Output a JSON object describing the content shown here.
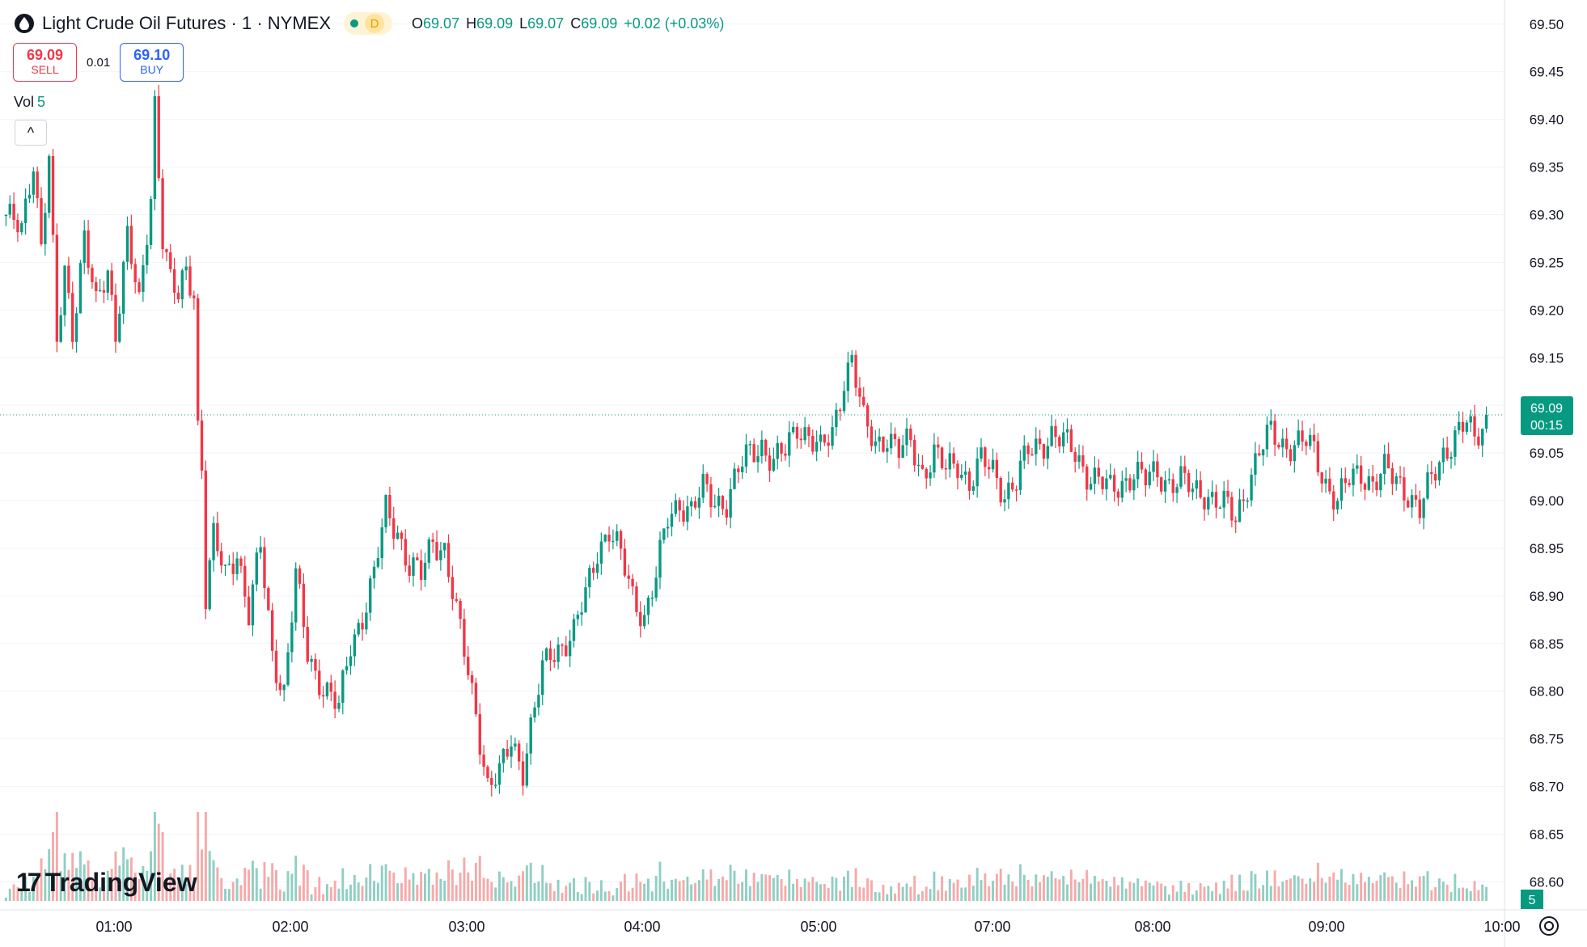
{
  "header": {
    "symbol_title": "Light Crude Oil Futures · 1 · NYMEX",
    "badge": "D",
    "ohlc": {
      "o_label": "O",
      "o": "69.07",
      "h_label": "H",
      "h": "69.09",
      "l_label": "L",
      "l": "69.07",
      "c_label": "C",
      "c": "69.09",
      "change": "+0.02 (+0.03%)"
    }
  },
  "trade": {
    "sell_price": "69.09",
    "sell_label": "SELL",
    "spread": "0.01",
    "buy_price": "69.10",
    "buy_label": "BUY"
  },
  "volume_label": {
    "name": "Vol",
    "value": "5"
  },
  "collapse_icon": "^",
  "logo": {
    "mark": "17",
    "text": "TradingView"
  },
  "price_scale": {
    "ticks": [
      "69.50",
      "69.45",
      "69.40",
      "69.35",
      "69.30",
      "69.25",
      "69.20",
      "69.15",
      "69.10",
      "69.05",
      "69.00",
      "68.95",
      "68.90",
      "68.85",
      "68.80",
      "68.75",
      "68.70",
      "68.65",
      "68.60"
    ],
    "last_price": "69.09",
    "countdown": "00:15",
    "volume_badge": "5"
  },
  "time_scale": {
    "ticks": [
      "01:00",
      "02:00",
      "03:00",
      "04:00",
      "05:00",
      "07:00",
      "08:00",
      "09:00",
      "10:00"
    ]
  },
  "colors": {
    "up": "#089981",
    "down": "#f23645",
    "vol_up": "#8fcfc3",
    "vol_down": "#f7a9a9",
    "grid": "#f0f3fa"
  },
  "chart_data": {
    "type": "candlestick",
    "interval": "1 minute",
    "ylim": [
      68.58,
      69.51
    ],
    "path": [
      [
        0,
        69.3
      ],
      [
        4,
        69.28
      ],
      [
        7,
        69.36
      ],
      [
        9,
        69.27
      ],
      [
        11,
        69.36
      ],
      [
        13,
        69.16
      ],
      [
        15,
        69.24
      ],
      [
        17,
        69.18
      ],
      [
        20,
        69.28
      ],
      [
        23,
        69.2
      ],
      [
        26,
        69.24
      ],
      [
        28,
        69.18
      ],
      [
        31,
        69.28
      ],
      [
        34,
        69.2
      ],
      [
        37,
        69.32
      ],
      [
        38,
        69.42
      ],
      [
        40,
        69.28
      ],
      [
        42,
        69.23
      ],
      [
        44,
        69.21
      ],
      [
        46,
        69.24
      ],
      [
        48,
        69.22
      ],
      [
        49,
        69.08
      ],
      [
        50,
        69.04
      ],
      [
        51,
        68.9
      ],
      [
        53,
        68.96
      ],
      [
        56,
        68.92
      ],
      [
        59,
        68.95
      ],
      [
        62,
        68.88
      ],
      [
        65,
        68.95
      ],
      [
        68,
        68.84
      ],
      [
        71,
        68.8
      ],
      [
        74,
        68.92
      ],
      [
        77,
        68.84
      ],
      [
        79,
        68.82
      ],
      [
        82,
        68.8
      ],
      [
        85,
        68.78
      ],
      [
        88,
        68.85
      ],
      [
        91,
        68.88
      ],
      [
        94,
        68.92
      ],
      [
        97,
        68.99
      ],
      [
        100,
        68.97
      ],
      [
        103,
        68.93
      ],
      [
        106,
        68.92
      ],
      [
        109,
        68.96
      ],
      [
        112,
        68.95
      ],
      [
        115,
        68.88
      ],
      [
        118,
        68.82
      ],
      [
        120,
        68.78
      ],
      [
        123,
        68.7
      ],
      [
        126,
        68.71
      ],
      [
        129,
        68.75
      ],
      [
        132,
        68.72
      ],
      [
        135,
        68.78
      ],
      [
        137,
        68.82
      ],
      [
        139,
        68.84
      ],
      [
        142,
        68.85
      ],
      [
        145,
        68.86
      ],
      [
        148,
        68.9
      ],
      [
        151,
        68.95
      ],
      [
        154,
        68.97
      ],
      [
        157,
        68.94
      ],
      [
        160,
        68.9
      ],
      [
        163,
        68.88
      ],
      [
        166,
        68.92
      ],
      [
        169,
        68.98
      ],
      [
        172,
        69.0
      ],
      [
        175,
        68.99
      ],
      [
        178,
        69.01
      ],
      [
        181,
        69.0
      ],
      [
        184,
        69.0
      ],
      [
        187,
        69.03
      ],
      [
        190,
        69.05
      ],
      [
        193,
        69.06
      ],
      [
        196,
        69.04
      ],
      [
        199,
        69.05
      ],
      [
        202,
        69.08
      ],
      [
        205,
        69.07
      ],
      [
        208,
        69.05
      ],
      [
        211,
        69.07
      ],
      [
        214,
        69.13
      ],
      [
        216,
        69.15
      ],
      [
        219,
        69.08
      ],
      [
        222,
        69.06
      ],
      [
        225,
        69.07
      ],
      [
        228,
        69.05
      ],
      [
        231,
        69.06
      ],
      [
        234,
        69.03
      ],
      [
        237,
        69.05
      ],
      [
        240,
        69.03
      ],
      [
        243,
        69.04
      ],
      [
        246,
        69.02
      ],
      [
        249,
        69.04
      ],
      [
        252,
        69.03
      ],
      [
        255,
        69.01
      ],
      [
        258,
        69.02
      ],
      [
        261,
        69.05
      ],
      [
        264,
        69.06
      ],
      [
        267,
        69.07
      ],
      [
        270,
        69.06
      ],
      [
        273,
        69.05
      ],
      [
        276,
        69.03
      ],
      [
        279,
        69.02
      ],
      [
        282,
        69.01
      ],
      [
        285,
        69.02
      ],
      [
        288,
        69.03
      ],
      [
        291,
        69.02
      ],
      [
        294,
        69.03
      ],
      [
        297,
        69.02
      ],
      [
        300,
        69.02
      ],
      [
        303,
        69.01
      ],
      [
        306,
        69.01
      ],
      [
        309,
        69.0
      ],
      [
        312,
        68.99
      ],
      [
        314,
        68.98
      ],
      [
        317,
        69.02
      ],
      [
        320,
        69.05
      ],
      [
        323,
        69.07
      ],
      [
        326,
        69.06
      ],
      [
        329,
        69.06
      ],
      [
        332,
        69.06
      ],
      [
        334,
        69.05
      ],
      [
        337,
        69.02
      ],
      [
        340,
        69.0
      ],
      [
        343,
        69.02
      ],
      [
        346,
        69.03
      ],
      [
        349,
        69.02
      ],
      [
        352,
        69.03
      ],
      [
        355,
        69.02
      ],
      [
        358,
        69.01
      ],
      [
        361,
        68.99
      ],
      [
        364,
        69.02
      ],
      [
        367,
        69.05
      ],
      [
        370,
        69.07
      ],
      [
        373,
        69.08
      ],
      [
        375,
        69.06
      ],
      [
        378,
        69.09
      ]
    ],
    "high": 69.42,
    "low": 68.64,
    "last": 69.09
  }
}
